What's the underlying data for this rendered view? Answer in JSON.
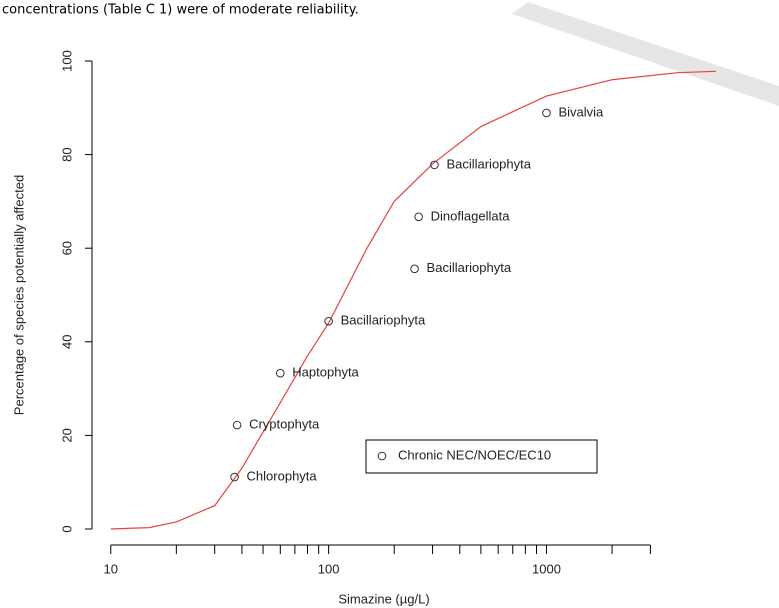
{
  "document_text": "concentrations (Table C 1) were of moderate reliability.",
  "chart_data": {
    "type": "scatter",
    "x_label": "Simazine (µg/L)",
    "y_label": "Percentage of species potentially affected",
    "log_x": true,
    "xlim": [
      8.2,
      6000
    ],
    "ylim": [
      0,
      100
    ],
    "xticks": [
      10,
      100,
      1000
    ],
    "xminorticks": [
      20,
      30,
      40,
      50,
      60,
      70,
      80,
      90,
      200,
      300,
      400,
      500,
      600,
      700,
      800,
      900,
      2000,
      3000
    ],
    "yticks": [
      0,
      20,
      40,
      60,
      80,
      100
    ],
    "series": [
      {
        "name": "Chronic NEC/NOEC/EC10",
        "color": "#333333",
        "x": [
          37,
          38,
          60,
          100,
          248,
          259,
          306,
          1000
        ],
        "values": [
          11.1,
          22.2,
          33.3,
          44.4,
          55.6,
          66.7,
          77.8,
          88.9
        ]
      }
    ],
    "point_labels": [
      "Chlorophyta",
      "Cryptophyta",
      "Haptophyta",
      "Bacillariophyta",
      "Bacillariophyta",
      "Dinoflagellata",
      "Bacillariophyta",
      "Bivalvia"
    ],
    "point_label_color": "#2323e6",
    "curve": {
      "color": "#e8423f",
      "x": [
        10,
        15,
        20,
        30,
        40,
        60,
        80,
        100,
        150,
        200,
        300,
        500,
        1000,
        2000,
        4000,
        6000
      ],
      "values": [
        0,
        0.3,
        1.5,
        5,
        13,
        27,
        37,
        44,
        60,
        70,
        78,
        86,
        92.5,
        96,
        97.5,
        97.8
      ]
    }
  }
}
